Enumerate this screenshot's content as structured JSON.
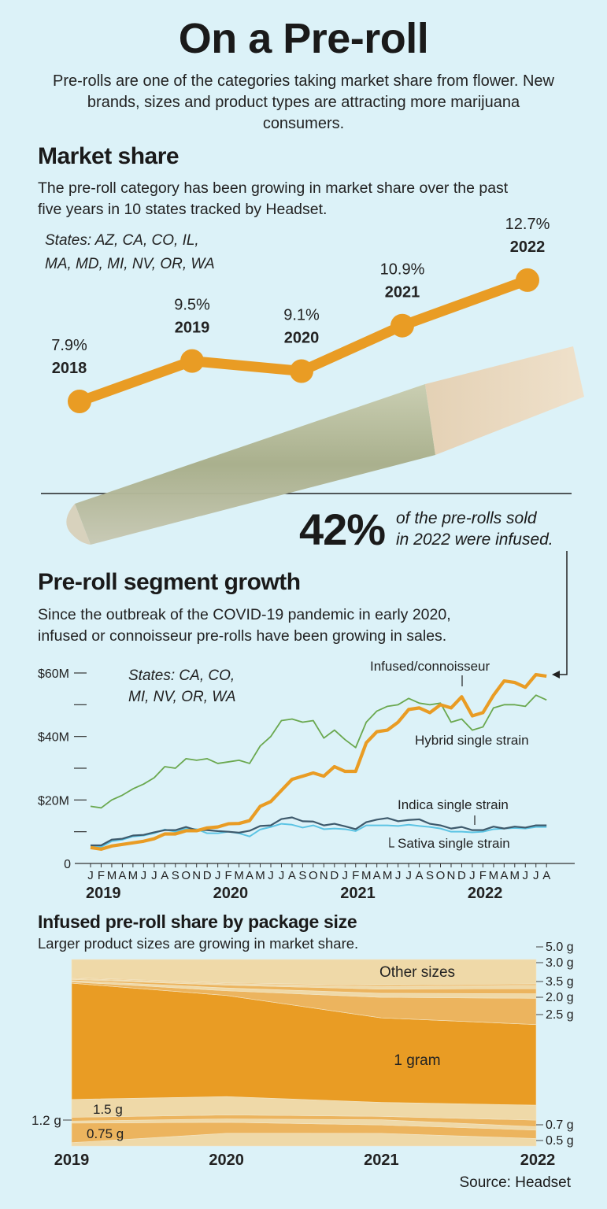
{
  "header": {
    "title": "On a Pre-roll",
    "intro": "Pre-rolls are one of the categories taking market share from flower. New brands, sizes and product types are attracting more marijuana consumers."
  },
  "market_share": {
    "heading": "Market share",
    "description": "The pre-roll category has been growing in market share over the past five years in 10 states tracked by Headset.",
    "states_line1": "States: AZ, CA, CO, IL,",
    "states_line2": "MA, MD, MI, NV, OR, WA"
  },
  "callout": {
    "value": "42%",
    "text_line1": "of the pre-rolls sold",
    "text_line2": "in 2022 were infused."
  },
  "segment_growth": {
    "heading": "Pre-roll segment growth",
    "description_line1": "Since the outbreak of the COVID-19 pandemic in early 2020,",
    "description_line2": "infused or connoisseur pre-rolls have been growing in sales.",
    "states_line1": "States: CA, CO,",
    "states_line2": "MI, NV, OR, WA"
  },
  "package_size": {
    "heading": "Infused pre-roll share by package size",
    "subtitle": "Larger product sizes are growing in market share."
  },
  "source": "Source: Headset",
  "colors": {
    "background": "#dcf2f8",
    "orange": "#e99c24",
    "hybrid_green": "#6aa84f",
    "indica_dark": "#3e5a6c",
    "sativa_blue": "#5cc4e4",
    "band_medium": "#ecb45e",
    "band_light": "#efd9a8"
  },
  "chart_data": [
    {
      "type": "line",
      "categories": [
        "2018",
        "2019",
        "2020",
        "2021",
        "2022"
      ],
      "values": [
        7.9,
        9.5,
        9.1,
        10.9,
        12.7
      ],
      "value_labels": [
        "7.9%",
        "9.5%",
        "9.1%",
        "10.9%",
        "12.7%"
      ],
      "unit": "%",
      "color": "#e99c24",
      "grid": false
    },
    {
      "type": "line",
      "x_month_labels": [
        "J",
        "F",
        "M",
        "A",
        "M",
        "J",
        "J",
        "A",
        "S",
        "O",
        "N",
        "D",
        "J",
        "F",
        "M",
        "A",
        "M",
        "J",
        "J",
        "A",
        "S",
        "O",
        "N",
        "D",
        "J",
        "F",
        "M",
        "A",
        "M",
        "J",
        "J",
        "A",
        "S",
        "O",
        "N",
        "D",
        "J",
        "F",
        "M",
        "A",
        "M",
        "J",
        "J",
        "A"
      ],
      "x_year_labels": [
        "2019",
        "2020",
        "2021",
        "2022"
      ],
      "y_ticks": [
        0,
        10,
        20,
        30,
        40,
        50,
        60
      ],
      "y_tick_labels": {
        "0": "0",
        "20": "$20M",
        "40": "$40M",
        "60": "$60M"
      },
      "ylim": [
        0,
        60
      ],
      "y_unit": "$M",
      "grid": false,
      "series": [
        {
          "name": "Hybrid single strain",
          "color": "#6aa84f",
          "values": [
            18,
            17.5,
            20,
            21.5,
            23.5,
            25,
            27,
            30.5,
            30,
            33,
            32.5,
            33,
            31.5,
            32,
            32.5,
            31.5,
            37,
            40,
            45,
            45.5,
            44.5,
            45,
            39.5,
            42,
            39,
            36.5,
            44.5,
            48,
            49.5,
            50,
            52,
            50.5,
            50,
            50.5,
            44.5,
            45.5,
            42,
            43,
            49,
            50,
            50,
            49.5,
            53,
            51.5
          ]
        },
        {
          "name": "Sativa single strain",
          "color": "#5cc4e4",
          "values": [
            5.2,
            5.2,
            7,
            7.5,
            8.5,
            8.8,
            9.5,
            10.7,
            10,
            11,
            10.8,
            9.5,
            9.5,
            10,
            9.5,
            8.5,
            10.7,
            11.5,
            12.5,
            12.2,
            11.3,
            12,
            10.8,
            11,
            10.8,
            10.2,
            12,
            12,
            12,
            11.8,
            12.2,
            11.8,
            11.5,
            11,
            10,
            10,
            9.8,
            10,
            10.8,
            11,
            11.2,
            11,
            11.5,
            11.5
          ]
        },
        {
          "name": "Indica single strain",
          "color": "#3e5a6c",
          "values": [
            5.7,
            5.7,
            7.5,
            7.8,
            8.8,
            9,
            9.8,
            10.5,
            10.5,
            11.5,
            10.5,
            10.5,
            10.2,
            10,
            9.7,
            10.3,
            11.8,
            12,
            14,
            14.5,
            13.3,
            13.2,
            12,
            12.5,
            11.7,
            10.8,
            13,
            13.8,
            14.3,
            13.3,
            13.7,
            13.9,
            12.5,
            12,
            11,
            11.5,
            10.5,
            10.5,
            11.6,
            11,
            11.6,
            11.3,
            12,
            12
          ]
        },
        {
          "name": "Infused/connoisseur",
          "color": "#e99c24",
          "values": [
            5,
            4.5,
            5.5,
            6,
            6.5,
            7,
            7.8,
            9.3,
            9.3,
            10.3,
            10.3,
            11.2,
            11.5,
            12.5,
            12.6,
            13.5,
            18,
            19.5,
            23,
            26.5,
            27.5,
            28.5,
            27.5,
            30.5,
            29,
            29,
            38,
            41.5,
            42,
            44.5,
            48.5,
            49,
            47.5,
            50,
            49,
            52.5,
            46.5,
            47.5,
            53,
            57.5,
            57,
            55.5,
            59.5,
            59
          ]
        }
      ]
    },
    {
      "type": "area",
      "stacked": "percent",
      "categories": [
        "2019",
        "2020",
        "2021",
        "2022"
      ],
      "series": [
        {
          "name": "0.5 g",
          "values": [
            1.8,
            6.8,
            6.8,
            4.0
          ]
        },
        {
          "name": "0.75 g",
          "values": [
            10.5,
            5.9,
            4.5,
            4.5
          ]
        },
        {
          "name": "0.7 g",
          "values": [
            1.1,
            1.8,
            2.8,
            1.8
          ]
        },
        {
          "name": "1.2 g",
          "values": [
            2.0,
            2.1,
            1.8,
            3.5
          ]
        },
        {
          "name": "1.5 g",
          "values": [
            9.6,
            9.8,
            7.5,
            8.0
          ]
        },
        {
          "name": "1 gram",
          "values": [
            62.3,
            54.0,
            45.3,
            43.0
          ]
        },
        {
          "name": "2.5 g",
          "values": [
            0.7,
            2.5,
            11.0,
            14.0
          ]
        },
        {
          "name": "2.0 g",
          "values": [
            0.7,
            1.5,
            2.2,
            2.4
          ]
        },
        {
          "name": "3.5 g",
          "values": [
            0.6,
            1.5,
            2.2,
            2.8
          ]
        },
        {
          "name": "3.0 g",
          "values": [
            0.6,
            0.8,
            1.4,
            1.8
          ]
        },
        {
          "name": "5.0 g",
          "values": [
            0.4,
            0.4,
            0.7,
            0.7
          ]
        },
        {
          "name": "Other sizes",
          "values": [
            9.7,
            12.5,
            13.8,
            13.0
          ]
        }
      ]
    }
  ]
}
